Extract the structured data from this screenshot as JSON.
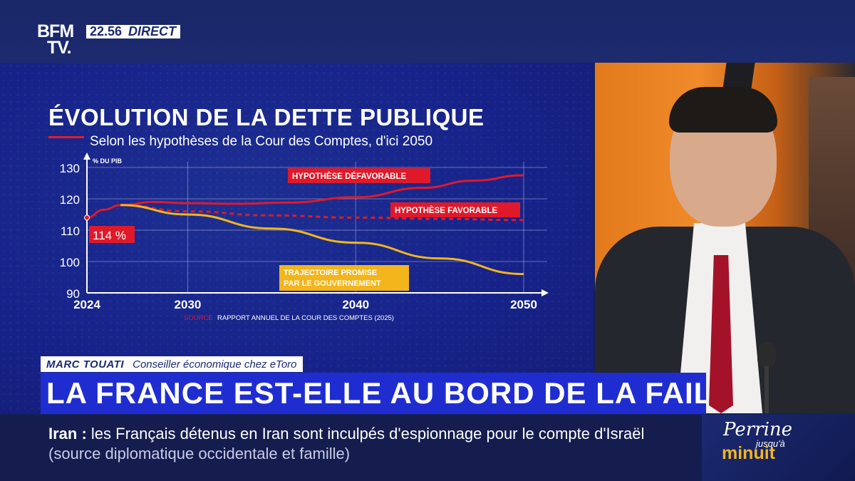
{
  "header": {
    "logo_line1": "BFM",
    "logo_line2": "TV.",
    "time": "22.56",
    "live_label": "DIRECT"
  },
  "chart_data": {
    "type": "line",
    "title": "ÉVOLUTION DE LA DETTE PUBLIQUE",
    "subtitle": "Selon les hypothèses de la Cour des Comptes, d'ici 2050",
    "ylabel": "% DU PIB",
    "ylim": [
      90,
      130
    ],
    "xlim": [
      2024,
      2050
    ],
    "yticks": [
      90,
      100,
      110,
      120,
      130
    ],
    "xticks": [
      2024,
      2030,
      2040,
      2050
    ],
    "grid": true,
    "start_label": "114 %",
    "series": [
      {
        "name": "HYPOTHÈSE DÉFAVORABLE",
        "color": "#e0192a",
        "style": "solid",
        "x": [
          2024,
          2025,
          2026,
          2028,
          2030,
          2033,
          2036,
          2040,
          2044,
          2047,
          2050
        ],
        "y": [
          114,
          116.5,
          118,
          119,
          118.6,
          118.4,
          118.8,
          120.5,
          123.5,
          125.8,
          127.5
        ]
      },
      {
        "name": "HYPOTHÈSE FAVORABLE",
        "color": "#e0192a",
        "style": "dashed",
        "x": [
          2026,
          2030,
          2035,
          2040,
          2045,
          2050
        ],
        "y": [
          118,
          116,
          114.7,
          114,
          113.6,
          113.2
        ]
      },
      {
        "name": "TRAJECTOIRE PROMISE PAR LE GOUVERNEMENT",
        "color": "#f3b51b",
        "style": "solid",
        "x": [
          2026,
          2030,
          2035,
          2040,
          2045,
          2050
        ],
        "y": [
          118,
          115,
          110.5,
          106,
          101,
          96
        ]
      }
    ],
    "series_labels": {
      "defavorable": "HYPOTHÈSE DÉFAVORABLE",
      "favorable": "HYPOTHÈSE FAVORABLE",
      "promise_line1": "TRAJECTOIRE PROMISE",
      "promise_line2": "PAR LE GOUVERNEMENT"
    },
    "source_label": "SOURCE",
    "source_text": "RAPPORT ANNUEL DE LA COUR DES COMPTES (2025)"
  },
  "lower_third": {
    "guest_name": "MARC TOUATI",
    "guest_role": "Conseiller économique chez eToro",
    "headline": "LA FRANCE EST-ELLE AU BORD DE LA FAILLITE ?"
  },
  "ticker": {
    "tag": "Iran :",
    "text": "les Français détenus en Iran sont inculpés d'espionnage pour le compte d'Israël",
    "source": "(source diplomatique occidentale et famille)"
  },
  "promo": {
    "line1": "Perrine",
    "line2": "jusqu'à",
    "line3": "minuit"
  },
  "colors": {
    "panel_blue": "#17238a",
    "headline_blue": "#1f2dd0",
    "accent_red": "#e0192a",
    "accent_yellow": "#f3b51b"
  }
}
